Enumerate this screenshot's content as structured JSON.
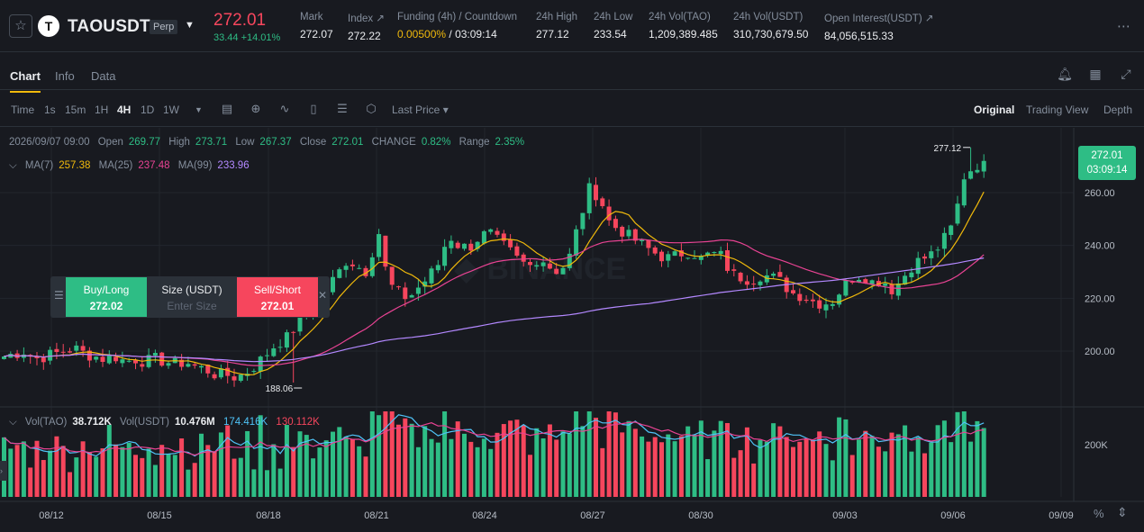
{
  "header": {
    "symbol": "TAOUSDT",
    "coin_letter": "T",
    "contract_type": "Perp",
    "last_price": "272.01",
    "change": "33.44 +14.01%",
    "stats": [
      {
        "label": "Mark",
        "value": "272.07"
      },
      {
        "label": "Index ↗",
        "value": "272.22"
      },
      {
        "label": "Funding (4h) / Countdown",
        "value_rate": "0.00500%",
        "value_sep": " / ",
        "value_countdown": "03:09:14"
      },
      {
        "label": "24h High",
        "value": "277.12"
      },
      {
        "label": "24h Low",
        "value": "233.54"
      },
      {
        "label": "24h Vol(TAO)",
        "value": "1,209,389.485"
      },
      {
        "label": "24h Vol(USDT)",
        "value": "310,730,679.50"
      },
      {
        "label": "Open Interest(USDT) ↗",
        "value": "84,056,515.33"
      }
    ],
    "more_icon": "⋯"
  },
  "tabs": [
    "Chart",
    "Info",
    "Data"
  ],
  "toolbar": {
    "intervals": [
      "Time",
      "1s",
      "15m",
      "1H",
      "4H",
      "1D",
      "1W"
    ],
    "active_interval": "4H",
    "price_type": "Last Price ▾",
    "views": [
      "Original",
      "Trading View",
      "Depth"
    ],
    "active_view": "Original"
  },
  "legend": {
    "date": "2026/09/07 09:00",
    "open_label": "Open",
    "open": "269.77",
    "high_label": "High",
    "high": "273.71",
    "low_label": "Low",
    "low": "267.37",
    "close_label": "Close",
    "close": "272.01",
    "change_label": "CHANGE",
    "change": "0.82%",
    "range_label": "Range",
    "range": "2.35%",
    "ma7_label": "MA(7)",
    "ma7": "257.38",
    "ma25_label": "MA(25)",
    "ma25": "237.48",
    "ma99_label": "MA(99)",
    "ma99": "233.96",
    "vol_tao_label": "Vol(TAO)",
    "vol_tao": "38.712K",
    "vol_usdt_label": "Vol(USDT)",
    "vol_usdt": "10.476M",
    "vol_ma1": "174.416K",
    "vol_ma2": "130.112K"
  },
  "price_tag": {
    "price": "272.01",
    "countdown": "03:09:14"
  },
  "order_panel": {
    "buy_label": "Buy/Long",
    "buy_price": "272.02",
    "size_label": "Size (USDT)",
    "size_placeholder": "Enter Size",
    "sell_label": "Sell/Short",
    "sell_price": "272.01"
  },
  "colors": {
    "up": "#2ebd85",
    "down": "#f6465d",
    "ma7": "#f0b90b",
    "ma25": "#e84393",
    "ma99": "#b388ff",
    "vol_ma1": "#4fc3f7",
    "vol_ma2": "#e84393"
  },
  "chart_data": {
    "type": "candlestick",
    "interval": "4H",
    "y_axis_ticks": [
      200,
      220,
      240,
      260
    ],
    "y_axis_labels": [
      "200.00",
      "220.00",
      "240.00",
      "260.00"
    ],
    "x_axis_labels": [
      "08/12",
      "08/15",
      "08/18",
      "08/21",
      "08/24",
      "08/27",
      "08/30",
      "09/03",
      "09/06",
      "09/09"
    ],
    "high_marker": "277.12",
    "low_marker": "188.06",
    "volume_tick_label": "200K",
    "close_path": [
      198,
      199,
      200,
      197,
      198,
      199,
      200,
      201,
      199,
      198,
      197,
      198,
      196,
      197,
      196,
      197,
      196,
      195,
      196,
      194,
      193,
      191,
      191,
      190,
      192,
      195,
      199,
      203,
      205,
      210,
      214,
      218,
      224,
      229,
      235,
      232,
      230,
      247,
      226,
      222,
      220,
      224,
      228,
      233,
      244,
      240,
      239,
      243,
      245,
      241,
      238,
      234,
      232,
      236,
      232,
      230,
      236,
      250,
      262,
      258,
      248,
      246,
      243,
      241,
      238,
      236,
      235,
      237,
      238,
      235,
      237,
      236,
      229,
      228,
      227,
      229,
      228,
      226,
      222,
      221,
      219,
      218,
      219,
      224,
      228,
      229,
      226,
      227,
      223,
      228,
      233,
      235,
      237,
      242,
      248,
      266,
      270,
      272
    ]
  }
}
